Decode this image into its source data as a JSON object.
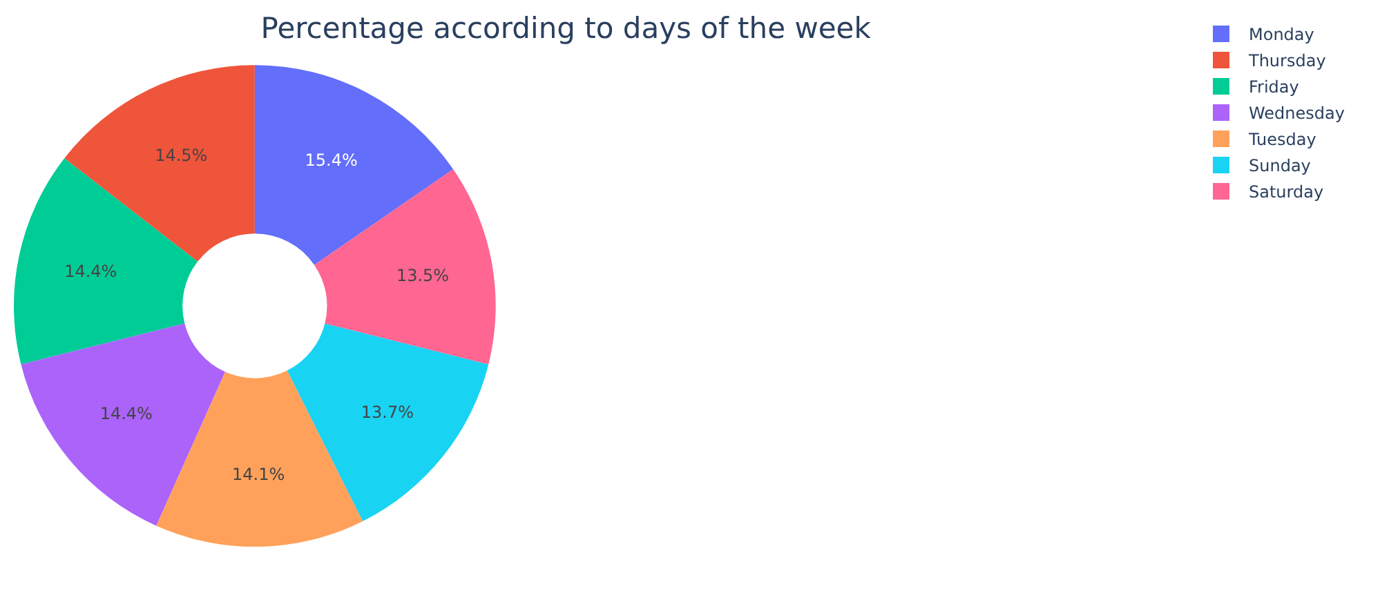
{
  "chart_data": {
    "type": "donut",
    "title": "Percentage according to days of the week",
    "categories": [
      "Monday",
      "Thursday",
      "Friday",
      "Wednesday",
      "Tuesday",
      "Sunday",
      "Saturday"
    ],
    "values": [
      15.4,
      14.5,
      14.4,
      14.4,
      14.1,
      13.7,
      13.5
    ],
    "value_labels": [
      "15.4%",
      "14.5%",
      "14.4%",
      "14.4%",
      "14.1%",
      "13.7%",
      "13.5%"
    ],
    "colors": [
      "#636efa",
      "#ef553b",
      "#00cc96",
      "#ab63fa",
      "#ffa15a",
      "#19d3f3",
      "#ff6692"
    ],
    "legend": "top right"
  }
}
